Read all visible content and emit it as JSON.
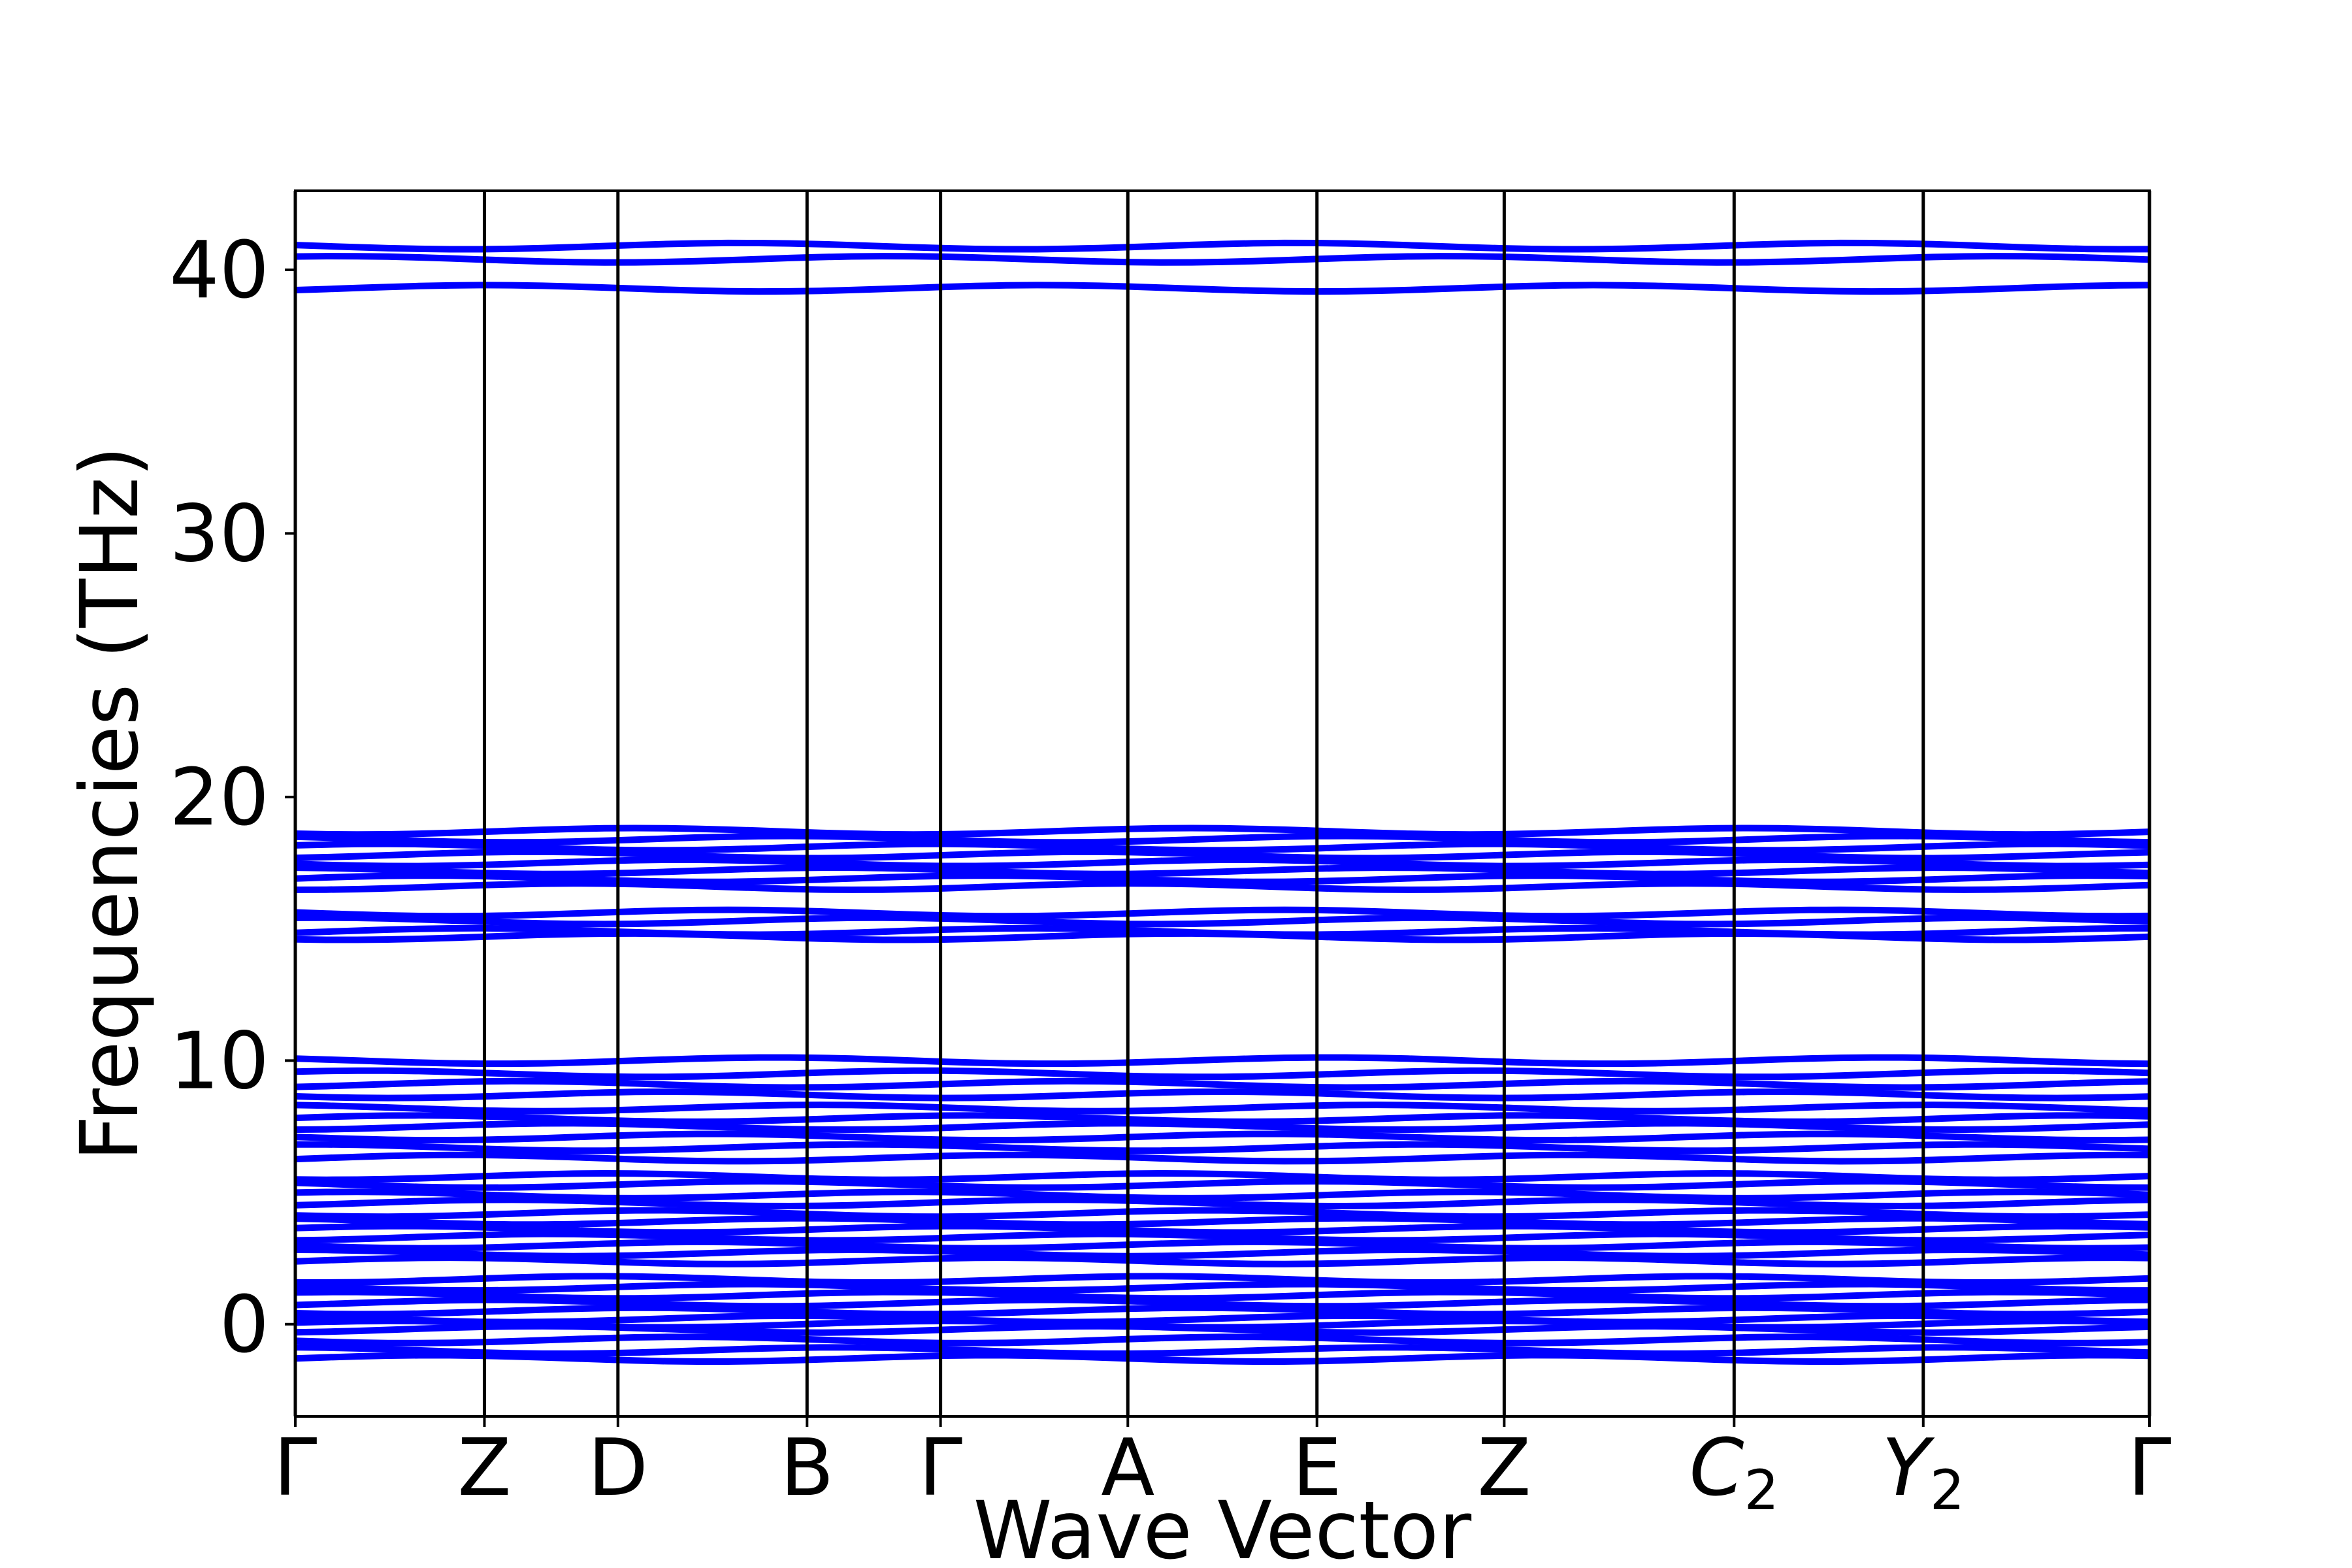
{
  "chart_data": {
    "type": "line",
    "title": "",
    "xlabel": "Wave Vector",
    "ylabel": "Frequencies (THz)",
    "ylim": [
      -3.5,
      43.0
    ],
    "y_ticks": [
      0,
      10,
      20,
      30,
      40
    ],
    "grid": false,
    "legend": "none",
    "line_color": "#0000ff",
    "divider_color": "#000000",
    "high_symmetry_points": [
      {
        "label": "Γ",
        "sub": "",
        "x": 0.0
      },
      {
        "label": "Z",
        "sub": "",
        "x": 1.02
      },
      {
        "label": "D",
        "sub": "",
        "x": 1.74
      },
      {
        "label": "B",
        "sub": "",
        "x": 2.76
      },
      {
        "label": "Γ",
        "sub": "",
        "x": 3.48
      },
      {
        "label": "A",
        "sub": "",
        "x": 4.49
      },
      {
        "label": "E",
        "sub": "",
        "x": 5.51
      },
      {
        "label": "Z",
        "sub": "",
        "x": 6.52
      },
      {
        "label": "C",
        "sub": "2",
        "x": 7.76
      },
      {
        "label": "Y",
        "sub": "2",
        "x": 8.78
      },
      {
        "label": "Γ",
        "sub": "",
        "x": 10.0
      }
    ],
    "band_levels_thz": [
      -1.3,
      -1.0,
      -0.6,
      -0.2,
      0.0,
      0.2,
      0.5,
      0.8,
      1.1,
      1.4,
      1.7,
      2.4,
      2.7,
      3.0,
      3.3,
      3.6,
      3.9,
      4.2,
      4.6,
      4.9,
      5.3,
      5.6,
      6.3,
      6.7,
      7.1,
      7.5,
      7.8,
      8.2,
      8.7,
      9.1,
      9.5,
      10.0,
      14.7,
      14.9,
      15.3,
      15.6,
      16.6,
      16.9,
      17.2,
      17.5,
      17.8,
      18.1,
      18.4,
      18.7,
      39.3,
      40.4,
      40.9
    ]
  }
}
